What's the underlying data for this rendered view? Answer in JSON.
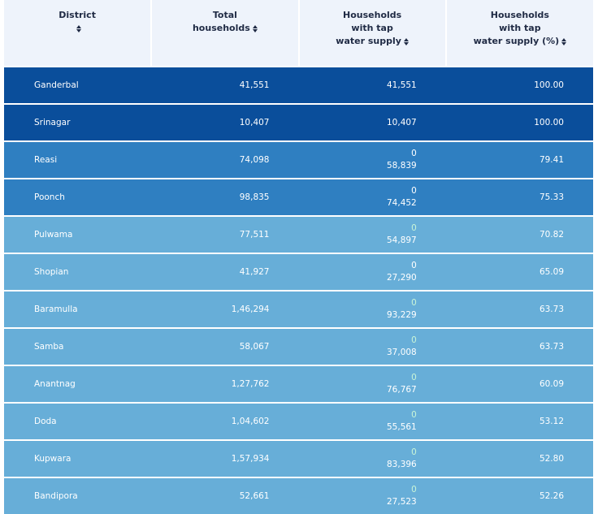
{
  "table": {
    "headers": [
      [
        "District"
      ],
      [
        "Total",
        "households"
      ],
      [
        "Households",
        "with tap",
        "water supply"
      ],
      [
        "Households",
        "with tap",
        "water supply (%)"
      ]
    ],
    "rows": [
      {
        "district": "Ganderbal",
        "total": "41,551",
        "tap": "41,551",
        "percent": "100.00"
      },
      {
        "district": "Srinagar",
        "total": "10,407",
        "tap": "10,407",
        "percent": "100.00"
      },
      {
        "district": "Reasi",
        "total": "74,098",
        "extra": "0",
        "tap": "58,839",
        "percent": "79.41"
      },
      {
        "district": "Poonch",
        "total": "98,835",
        "extra": "0",
        "tap": "74,452",
        "percent": "75.33"
      },
      {
        "district": "Pulwama",
        "total": "77,511",
        "extra": "0",
        "tap": "54,897",
        "percent": "70.82"
      },
      {
        "district": "Shopian",
        "total": "41,927",
        "extra": "0",
        "tap": "27,290",
        "percent": "65.09"
      },
      {
        "district": "Baramulla",
        "total": "1,46,294",
        "extra": "0",
        "tap": "93,229",
        "percent": "63.73"
      },
      {
        "district": "Samba",
        "total": "58,067",
        "extra": "0",
        "tap": "37,008",
        "percent": "63.73"
      },
      {
        "district": "Anantnag",
        "total": "1,27,762",
        "extra": "0",
        "tap": "76,767",
        "percent": "60.09"
      },
      {
        "district": "Doda",
        "total": "1,04,602",
        "extra": "0",
        "tap": "55,561",
        "percent": "53.12"
      },
      {
        "district": "Kupwara",
        "total": "1,57,934",
        "extra": "0",
        "tap": "83,396",
        "percent": "52.80"
      },
      {
        "district": "Bandipora",
        "total": "52,661",
        "extra": "0",
        "tap": "27,523",
        "percent": "52.26"
      }
    ]
  }
}
